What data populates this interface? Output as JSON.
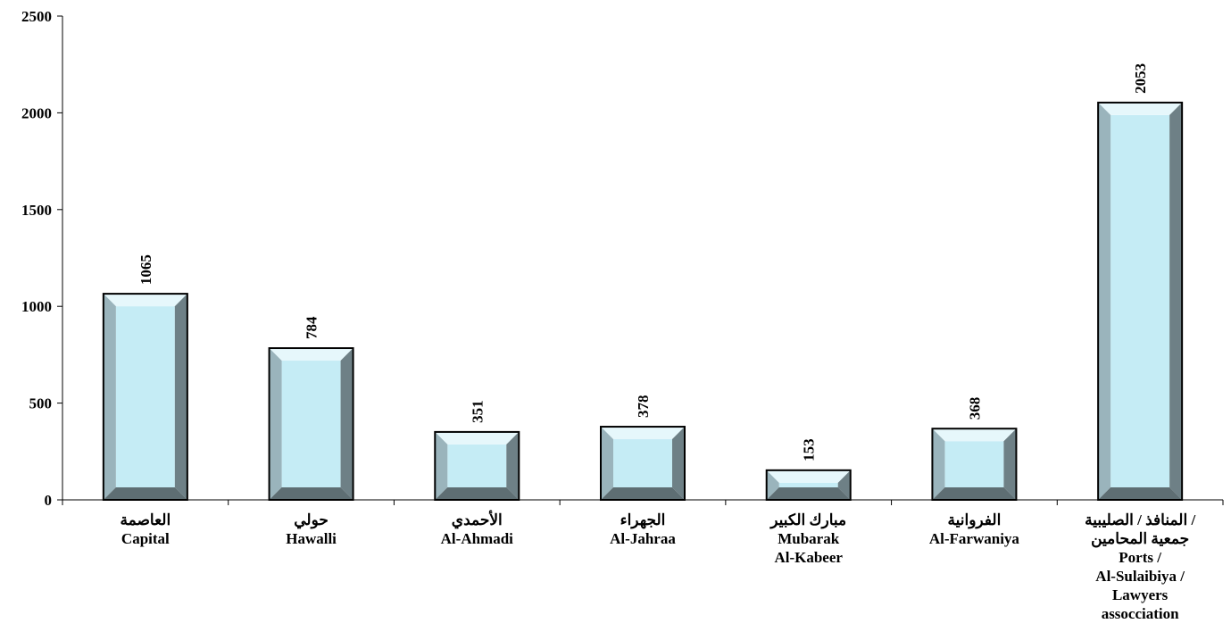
{
  "chart_data": {
    "type": "bar",
    "categories": [
      [
        "العاصمة",
        "Capital"
      ],
      [
        "حولي",
        "Hawalli"
      ],
      [
        "الأحمدي",
        "Al-Ahmadi"
      ],
      [
        "الجهراء",
        "Al-Jahraa"
      ],
      [
        "مبارك الكبير",
        "Mubarak",
        "Al-Kabeer"
      ],
      [
        "الفروانية",
        "Al-Farwaniya"
      ],
      [
        "المنافذ / الصليبية /",
        "جمعية المحامين",
        "Ports /",
        "Al-Sulaibiya /",
        "Lawyers",
        "assocciation"
      ]
    ],
    "values": [
      1065,
      784,
      351,
      378,
      153,
      368,
      2053
    ],
    "ylim": [
      0,
      2500
    ],
    "yticks": [
      0,
      500,
      1000,
      1500,
      2000,
      2500
    ],
    "grid": false,
    "legend": "none",
    "colors": {
      "face": "#c5ecf5",
      "bevel_top": "#e6f7fb",
      "bevel_left": "#9ab4bc",
      "bevel_right": "#6e8086",
      "bevel_bottom": "#5e6e73",
      "outline": "#000000"
    }
  }
}
